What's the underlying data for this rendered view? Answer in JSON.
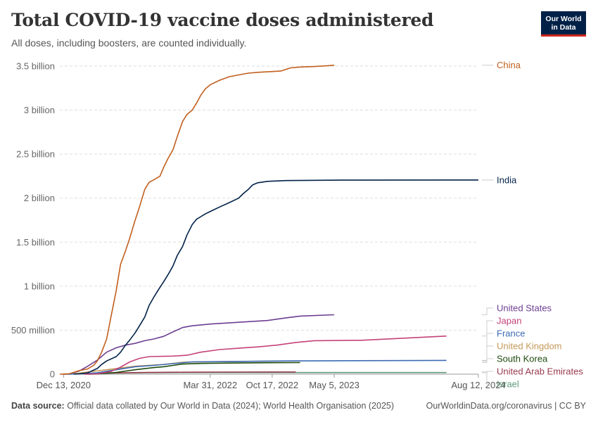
{
  "header": {
    "title": "Total COVID-19 vaccine doses administered",
    "subtitle": "All doses, including boosters, are counted individually.",
    "logo_line1": "Our World",
    "logo_line2": "in Data"
  },
  "footer": {
    "source_label": "Data source:",
    "source_text": "Official data collated by Our World in Data (2024); World Health Organisation (2025)",
    "right_text": "OurWorldinData.org/coronavirus | CC BY"
  },
  "chart_data": {
    "type": "line",
    "title": "Total COVID-19 vaccine doses administered",
    "subtitle": "All doses, including boosters, are counted individually.",
    "x_type": "date",
    "xlim": [
      "2020-12-01",
      "2024-08-12"
    ],
    "ylim": [
      0,
      3500000000
    ],
    "grid": true,
    "legend": "right, labels at line ends",
    "y_ticks": [
      {
        "value": 0,
        "label": "0"
      },
      {
        "value": 500000000,
        "label": "500 million"
      },
      {
        "value": 1000000000,
        "label": "1 billion"
      },
      {
        "value": 1500000000,
        "label": "1.5 billion"
      },
      {
        "value": 2000000000,
        "label": "2 billion"
      },
      {
        "value": 2500000000,
        "label": "2.5 billion"
      },
      {
        "value": 3000000000,
        "label": "3 billion"
      },
      {
        "value": 3500000000,
        "label": "3.5 billion"
      }
    ],
    "x_ticks": [
      {
        "date": "2020-12-13",
        "label": "Dec 13, 2020"
      },
      {
        "date": "2022-03-31",
        "label": "Mar 31, 2022"
      },
      {
        "date": "2022-10-17",
        "label": "Oct 17, 2022"
      },
      {
        "date": "2023-05-05",
        "label": "May 5, 2023"
      },
      {
        "date": "2024-08-12",
        "label": "Aug 12, 2024"
      }
    ],
    "series": [
      {
        "name": "China",
        "color": "#c15f1e",
        "points": [
          [
            "2020-12-01",
            0
          ],
          [
            "2020-12-31",
            4000000
          ],
          [
            "2021-02-01",
            40000000
          ],
          [
            "2021-03-01",
            60000000
          ],
          [
            "2021-03-20",
            100000000
          ],
          [
            "2021-04-01",
            150000000
          ],
          [
            "2021-04-15",
            250000000
          ],
          [
            "2021-05-01",
            400000000
          ],
          [
            "2021-05-15",
            650000000
          ],
          [
            "2021-06-01",
            950000000
          ],
          [
            "2021-06-15",
            1250000000
          ],
          [
            "2021-07-01",
            1400000000
          ],
          [
            "2021-07-15",
            1550000000
          ],
          [
            "2021-08-01",
            1750000000
          ],
          [
            "2021-08-15",
            1900000000
          ],
          [
            "2021-09-01",
            2100000000
          ],
          [
            "2021-09-15",
            2180000000
          ],
          [
            "2021-10-01",
            2210000000
          ],
          [
            "2021-10-20",
            2250000000
          ],
          [
            "2021-11-01",
            2350000000
          ],
          [
            "2021-11-15",
            2450000000
          ],
          [
            "2021-12-01",
            2550000000
          ],
          [
            "2021-12-15",
            2700000000
          ],
          [
            "2022-01-01",
            2870000000
          ],
          [
            "2022-01-15",
            2950000000
          ],
          [
            "2022-02-01",
            3000000000
          ],
          [
            "2022-02-15",
            3080000000
          ],
          [
            "2022-03-01",
            3170000000
          ],
          [
            "2022-03-15",
            3240000000
          ],
          [
            "2022-04-01",
            3290000000
          ],
          [
            "2022-05-01",
            3340000000
          ],
          [
            "2022-06-01",
            3380000000
          ],
          [
            "2022-07-01",
            3400000000
          ],
          [
            "2022-08-01",
            3420000000
          ],
          [
            "2022-09-01",
            3430000000
          ],
          [
            "2022-10-01",
            3435000000
          ],
          [
            "2022-11-15",
            3445000000
          ],
          [
            "2022-12-15",
            3480000000
          ],
          [
            "2023-01-15",
            3490000000
          ],
          [
            "2023-03-01",
            3495000000
          ],
          [
            "2023-04-15",
            3505000000
          ],
          [
            "2023-05-05",
            3510000000
          ]
        ]
      },
      {
        "name": "India",
        "color": "#002147",
        "points": [
          [
            "2021-01-16",
            0
          ],
          [
            "2021-02-01",
            4000000
          ],
          [
            "2021-03-01",
            15000000
          ],
          [
            "2021-04-01",
            65000000
          ],
          [
            "2021-04-15",
            110000000
          ],
          [
            "2021-05-01",
            150000000
          ],
          [
            "2021-06-01",
            200000000
          ],
          [
            "2021-06-15",
            250000000
          ],
          [
            "2021-07-01",
            330000000
          ],
          [
            "2021-07-15",
            390000000
          ],
          [
            "2021-08-01",
            470000000
          ],
          [
            "2021-08-15",
            550000000
          ],
          [
            "2021-09-01",
            650000000
          ],
          [
            "2021-09-15",
            780000000
          ],
          [
            "2021-10-01",
            880000000
          ],
          [
            "2021-10-15",
            960000000
          ],
          [
            "2021-11-01",
            1050000000
          ],
          [
            "2021-11-15",
            1130000000
          ],
          [
            "2021-12-01",
            1230000000
          ],
          [
            "2021-12-15",
            1350000000
          ],
          [
            "2022-01-01",
            1450000000
          ],
          [
            "2022-01-15",
            1580000000
          ],
          [
            "2022-02-01",
            1700000000
          ],
          [
            "2022-02-15",
            1760000000
          ],
          [
            "2022-03-01",
            1790000000
          ],
          [
            "2022-03-15",
            1820000000
          ],
          [
            "2022-04-01",
            1850000000
          ],
          [
            "2022-05-01",
            1900000000
          ],
          [
            "2022-06-01",
            1950000000
          ],
          [
            "2022-07-01",
            2000000000
          ],
          [
            "2022-07-15",
            2050000000
          ],
          [
            "2022-08-01",
            2100000000
          ],
          [
            "2022-08-15",
            2150000000
          ],
          [
            "2022-09-01",
            2175000000
          ],
          [
            "2022-10-01",
            2190000000
          ],
          [
            "2022-12-01",
            2200000000
          ],
          [
            "2023-06-01",
            2205000000
          ],
          [
            "2024-08-12",
            2206000000
          ]
        ]
      },
      {
        "name": "United States",
        "color": "#6d3e91",
        "points": [
          [
            "2020-12-14",
            0
          ],
          [
            "2021-01-01",
            3000000
          ],
          [
            "2021-02-01",
            35000000
          ],
          [
            "2021-03-01",
            90000000
          ],
          [
            "2021-04-01",
            160000000
          ],
          [
            "2021-05-01",
            250000000
          ],
          [
            "2021-06-01",
            300000000
          ],
          [
            "2021-07-01",
            330000000
          ],
          [
            "2021-08-01",
            350000000
          ],
          [
            "2021-09-01",
            380000000
          ],
          [
            "2021-10-01",
            400000000
          ],
          [
            "2021-11-01",
            430000000
          ],
          [
            "2021-12-01",
            480000000
          ],
          [
            "2022-01-01",
            530000000
          ],
          [
            "2022-02-01",
            550000000
          ],
          [
            "2022-04-01",
            570000000
          ],
          [
            "2022-07-01",
            590000000
          ],
          [
            "2022-10-01",
            610000000
          ],
          [
            "2022-12-01",
            640000000
          ],
          [
            "2023-01-15",
            660000000
          ],
          [
            "2023-05-05",
            675000000
          ]
        ]
      },
      {
        "name": "Japan",
        "color": "#c4427a",
        "points": [
          [
            "2021-02-17",
            0
          ],
          [
            "2021-04-01",
            3000000
          ],
          [
            "2021-05-15",
            30000000
          ],
          [
            "2021-06-15",
            80000000
          ],
          [
            "2021-07-15",
            140000000
          ],
          [
            "2021-08-15",
            180000000
          ],
          [
            "2021-09-15",
            200000000
          ],
          [
            "2021-12-01",
            205000000
          ],
          [
            "2022-01-15",
            215000000
          ],
          [
            "2022-03-01",
            250000000
          ],
          [
            "2022-05-01",
            280000000
          ],
          [
            "2022-07-01",
            295000000
          ],
          [
            "2022-09-01",
            310000000
          ],
          [
            "2022-11-01",
            330000000
          ],
          [
            "2023-01-01",
            360000000
          ],
          [
            "2023-03-01",
            380000000
          ],
          [
            "2023-08-01",
            385000000
          ],
          [
            "2024-05-01",
            433000000
          ]
        ]
      },
      {
        "name": "France",
        "color": "#3c6bb3",
        "points": [
          [
            "2020-12-27",
            0
          ],
          [
            "2021-02-01",
            3000000
          ],
          [
            "2021-04-01",
            15000000
          ],
          [
            "2021-06-01",
            50000000
          ],
          [
            "2021-08-01",
            85000000
          ],
          [
            "2021-10-01",
            100000000
          ],
          [
            "2021-12-01",
            120000000
          ],
          [
            "2022-02-01",
            140000000
          ],
          [
            "2022-06-01",
            143000000
          ],
          [
            "2022-12-01",
            150000000
          ],
          [
            "2024-05-01",
            157000000
          ]
        ]
      },
      {
        "name": "United Kingdom",
        "color": "#c49a5a",
        "points": [
          [
            "2020-12-08",
            0
          ],
          [
            "2021-01-01",
            3000000
          ],
          [
            "2021-02-01",
            12000000
          ],
          [
            "2021-03-01",
            25000000
          ],
          [
            "2021-05-01",
            50000000
          ],
          [
            "2021-08-01",
            90000000
          ],
          [
            "2021-11-01",
            110000000
          ],
          [
            "2022-01-01",
            135000000
          ],
          [
            "2022-03-01",
            141000000
          ],
          [
            "2022-06-01",
            143000000
          ],
          [
            "2022-10-01",
            148000000
          ],
          [
            "2023-01-15",
            150000000
          ]
        ]
      },
      {
        "name": "South Korea",
        "color": "#1e4b0e",
        "points": [
          [
            "2021-02-26",
            0
          ],
          [
            "2021-04-01",
            2000000
          ],
          [
            "2021-06-01",
            20000000
          ],
          [
            "2021-08-01",
            50000000
          ],
          [
            "2021-10-01",
            75000000
          ],
          [
            "2021-11-01",
            85000000
          ],
          [
            "2021-12-01",
            100000000
          ],
          [
            "2022-01-01",
            115000000
          ],
          [
            "2022-03-01",
            122000000
          ],
          [
            "2022-06-01",
            126000000
          ],
          [
            "2022-10-01",
            130000000
          ],
          [
            "2023-01-15",
            132000000
          ]
        ]
      },
      {
        "name": "United Arab Emirates",
        "color": "#9a3b4f",
        "points": [
          [
            "2020-12-14",
            0
          ],
          [
            "2021-03-01",
            7000000
          ],
          [
            "2021-06-01",
            14000000
          ],
          [
            "2021-09-01",
            19000000
          ],
          [
            "2022-01-01",
            22000000
          ],
          [
            "2022-06-01",
            24000000
          ],
          [
            "2023-01-01",
            25000000
          ]
        ]
      },
      {
        "name": "Israel",
        "color": "#5f9b7a",
        "points": [
          [
            "2020-12-19",
            0
          ],
          [
            "2021-03-01",
            9000000
          ],
          [
            "2021-09-01",
            16000000
          ],
          [
            "2022-01-01",
            18000000
          ],
          [
            "2024-05-01",
            18500000
          ]
        ]
      }
    ]
  }
}
